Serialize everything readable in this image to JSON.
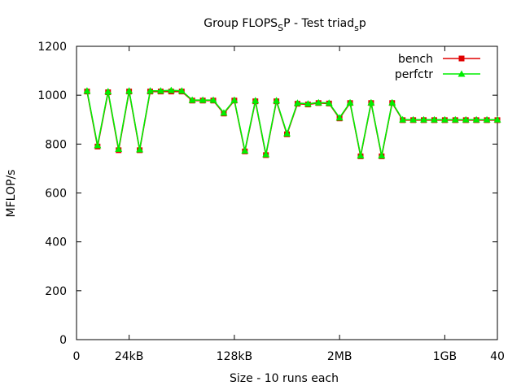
{
  "chart_data": {
    "type": "line",
    "title": {
      "main": "Group FLOPS",
      "sub1": "S",
      "mid": "P - Test triad",
      "sub2": "s",
      "end": "p"
    },
    "xlabel": "Size - 10 runs each",
    "ylabel": "MFLOP/s",
    "xlim": [
      0,
      40
    ],
    "ylim": [
      0,
      1200
    ],
    "yticks": [
      0,
      200,
      400,
      600,
      800,
      1000,
      1200
    ],
    "xticks": [
      {
        "value": 0,
        "label": "0"
      },
      {
        "value": 5,
        "label": "24kB"
      },
      {
        "value": 15,
        "label": "128kB"
      },
      {
        "value": 25,
        "label": "2MB"
      },
      {
        "value": 35,
        "label": "1GB"
      },
      {
        "value": 40,
        "label": "40"
      }
    ],
    "grid": false,
    "legend_position": "top-right",
    "x": [
      1,
      2,
      3,
      4,
      5,
      6,
      7,
      8,
      9,
      10,
      11,
      12,
      13,
      14,
      15,
      16,
      17,
      18,
      19,
      20,
      21,
      22,
      23,
      24,
      25,
      26,
      27,
      28,
      29,
      30,
      31,
      32,
      33,
      34,
      35,
      36,
      37,
      38,
      39,
      40
    ],
    "series": [
      {
        "name": "bench",
        "color": "#e00000",
        "marker": "square",
        "values": [
          1015,
          790,
          1012,
          775,
          1015,
          775,
          1015,
          1015,
          1015,
          1015,
          978,
          978,
          978,
          925,
          978,
          770,
          975,
          755,
          975,
          840,
          965,
          962,
          968,
          966,
          905,
          968,
          750,
          968,
          750,
          968,
          898,
          898,
          898,
          898,
          898,
          898,
          898,
          898,
          898,
          898
        ]
      },
      {
        "name": "perfctr",
        "color": "#00ee00",
        "marker": "triangle",
        "values": [
          1018,
          795,
          1015,
          780,
          1018,
          778,
          1018,
          1018,
          1020,
          1018,
          980,
          980,
          980,
          928,
          980,
          773,
          978,
          758,
          978,
          843,
          968,
          965,
          970,
          968,
          908,
          970,
          753,
          970,
          753,
          970,
          900,
          900,
          900,
          900,
          900,
          900,
          900,
          900,
          900,
          900
        ]
      }
    ]
  }
}
